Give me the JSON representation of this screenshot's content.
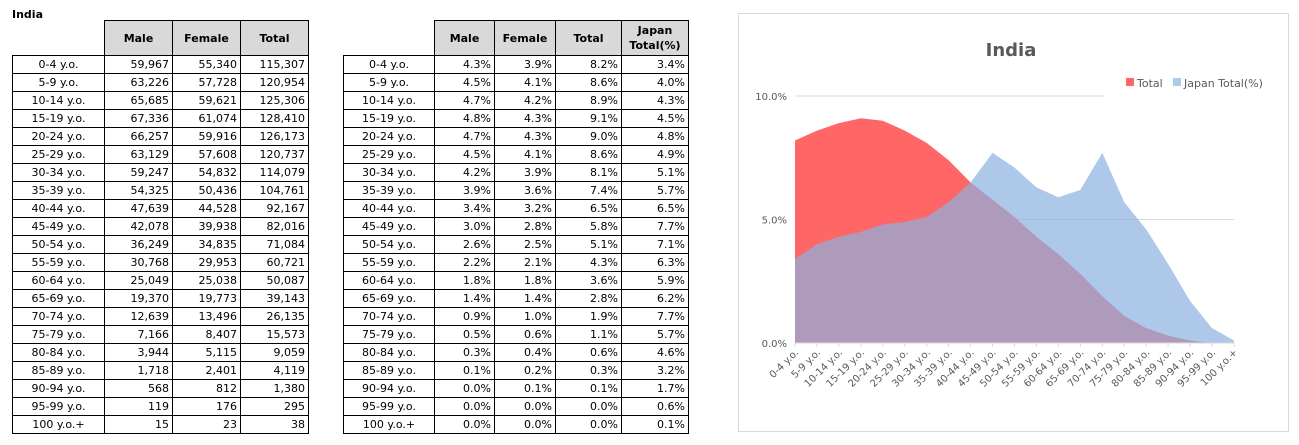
{
  "sheet_title": "India",
  "left_table": {
    "headers": [
      "",
      "Male",
      "Female",
      "Total"
    ],
    "rows": [
      [
        "0-4 y.o.",
        "59,967",
        "55,340",
        "115,307"
      ],
      [
        "5-9 y.o.",
        "63,226",
        "57,728",
        "120,954"
      ],
      [
        "10-14 y.o.",
        "65,685",
        "59,621",
        "125,306"
      ],
      [
        "15-19 y.o.",
        "67,336",
        "61,074",
        "128,410"
      ],
      [
        "20-24 y.o.",
        "66,257",
        "59,916",
        "126,173"
      ],
      [
        "25-29 y.o.",
        "63,129",
        "57,608",
        "120,737"
      ],
      [
        "30-34 y.o.",
        "59,247",
        "54,832",
        "114,079"
      ],
      [
        "35-39 y.o.",
        "54,325",
        "50,436",
        "104,761"
      ],
      [
        "40-44 y.o.",
        "47,639",
        "44,528",
        "92,167"
      ],
      [
        "45-49 y.o.",
        "42,078",
        "39,938",
        "82,016"
      ],
      [
        "50-54 y.o.",
        "36,249",
        "34,835",
        "71,084"
      ],
      [
        "55-59 y.o.",
        "30,768",
        "29,953",
        "60,721"
      ],
      [
        "60-64 y.o.",
        "25,049",
        "25,038",
        "50,087"
      ],
      [
        "65-69 y.o.",
        "19,370",
        "19,773",
        "39,143"
      ],
      [
        "70-74 y.o.",
        "12,639",
        "13,496",
        "26,135"
      ],
      [
        "75-79 y.o.",
        "7,166",
        "8,407",
        "15,573"
      ],
      [
        "80-84 y.o.",
        "3,944",
        "5,115",
        "9,059"
      ],
      [
        "85-89 y.o.",
        "1,718",
        "2,401",
        "4,119"
      ],
      [
        "90-94 y.o.",
        "568",
        "812",
        "1,380"
      ],
      [
        "95-99 y.o.",
        "119",
        "176",
        "295"
      ],
      [
        "100 y.o.+",
        "15",
        "23",
        "38"
      ]
    ]
  },
  "right_table": {
    "headers": [
      "",
      "Male",
      "Female",
      "Total",
      "Japan Total(%)"
    ],
    "rows": [
      [
        "0-4 y.o.",
        "4.3%",
        "3.9%",
        "8.2%",
        "3.4%"
      ],
      [
        "5-9 y.o.",
        "4.5%",
        "4.1%",
        "8.6%",
        "4.0%"
      ],
      [
        "10-14 y.o.",
        "4.7%",
        "4.2%",
        "8.9%",
        "4.3%"
      ],
      [
        "15-19 y.o.",
        "4.8%",
        "4.3%",
        "9.1%",
        "4.5%"
      ],
      [
        "20-24 y.o.",
        "4.7%",
        "4.3%",
        "9.0%",
        "4.8%"
      ],
      [
        "25-29 y.o.",
        "4.5%",
        "4.1%",
        "8.6%",
        "4.9%"
      ],
      [
        "30-34 y.o.",
        "4.2%",
        "3.9%",
        "8.1%",
        "5.1%"
      ],
      [
        "35-39 y.o.",
        "3.9%",
        "3.6%",
        "7.4%",
        "5.7%"
      ],
      [
        "40-44 y.o.",
        "3.4%",
        "3.2%",
        "6.5%",
        "6.5%"
      ],
      [
        "45-49 y.o.",
        "3.0%",
        "2.8%",
        "5.8%",
        "7.7%"
      ],
      [
        "50-54 y.o.",
        "2.6%",
        "2.5%",
        "5.1%",
        "7.1%"
      ],
      [
        "55-59 y.o.",
        "2.2%",
        "2.1%",
        "4.3%",
        "6.3%"
      ],
      [
        "60-64 y.o.",
        "1.8%",
        "1.8%",
        "3.6%",
        "5.9%"
      ],
      [
        "65-69 y.o.",
        "1.4%",
        "1.4%",
        "2.8%",
        "6.2%"
      ],
      [
        "70-74 y.o.",
        "0.9%",
        "1.0%",
        "1.9%",
        "7.7%"
      ],
      [
        "75-79 y.o.",
        "0.5%",
        "0.6%",
        "1.1%",
        "5.7%"
      ],
      [
        "80-84 y.o.",
        "0.3%",
        "0.4%",
        "0.6%",
        "4.6%"
      ],
      [
        "85-89 y.o.",
        "0.1%",
        "0.2%",
        "0.3%",
        "3.2%"
      ],
      [
        "90-94 y.o.",
        "0.0%",
        "0.1%",
        "0.1%",
        "1.7%"
      ],
      [
        "95-99 y.o.",
        "0.0%",
        "0.0%",
        "0.0%",
        "0.6%"
      ],
      [
        "100 y.o.+",
        "0.0%",
        "0.0%",
        "0.0%",
        "0.1%"
      ]
    ]
  },
  "chart_data": {
    "type": "area",
    "title": "India",
    "categories": [
      "0-4 y.o.",
      "5-9 y.o.",
      "10-14 y.o.",
      "15-19 y.o.",
      "20-24 y.o.",
      "25-29 y.o.",
      "30-34 y.o.",
      "35-39 y.o.",
      "40-44 y.o.",
      "45-49 y.o.",
      "50-54 y.o.",
      "55-59 y.o.",
      "60-64 y.o.",
      "65-69 y.o.",
      "70-74 y.o.",
      "75-79 y.o.",
      "80-84 y.o.",
      "85-89 y.o.",
      "90-94 y.o.",
      "95-99 y.o.",
      "100 y.o.+"
    ],
    "series": [
      {
        "name": "Total",
        "color": "#ff6666",
        "values": [
          8.2,
          8.6,
          8.9,
          9.1,
          9.0,
          8.6,
          8.1,
          7.4,
          6.5,
          5.8,
          5.1,
          4.3,
          3.6,
          2.8,
          1.9,
          1.1,
          0.6,
          0.3,
          0.1,
          0.0,
          0.0
        ]
      },
      {
        "name": "Japan Total(%)",
        "color": "#aec8ea",
        "values": [
          3.4,
          4.0,
          4.3,
          4.5,
          4.8,
          4.9,
          5.1,
          5.7,
          6.5,
          7.7,
          7.1,
          6.3,
          5.9,
          6.2,
          7.7,
          5.7,
          4.6,
          3.2,
          1.7,
          0.6,
          0.1
        ]
      }
    ],
    "ylim": [
      0,
      10
    ],
    "yticks": [
      "0.0%",
      "5.0%",
      "10.0%"
    ],
    "grid": true,
    "legend": "top-right"
  }
}
